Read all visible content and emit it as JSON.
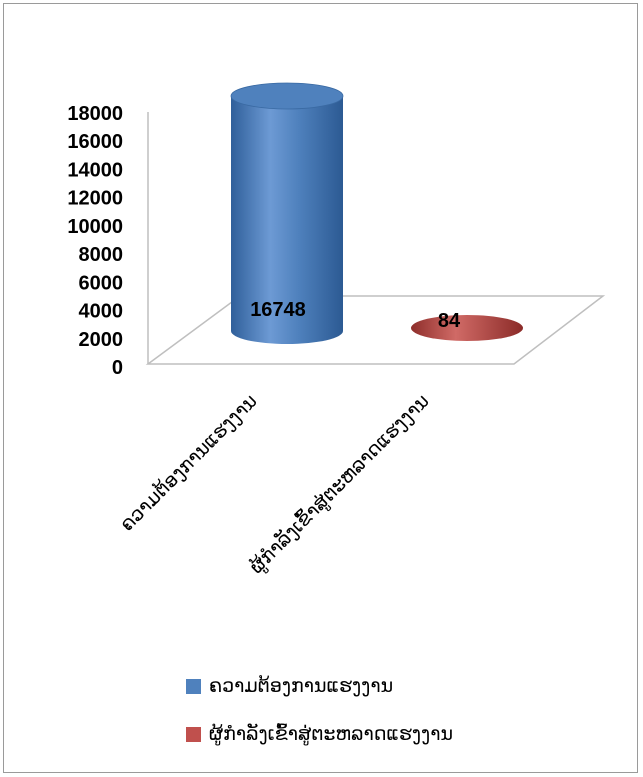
{
  "chart_data": {
    "type": "bar",
    "style": "3d-cylinder",
    "categories": [
      "ຄວາມຕ້ອງການແຮງງານ",
      "ຜູ້ກໍາລັງເຂົ້າສູ່ຕະຫລາດແຮງງານ"
    ],
    "values": [
      16748,
      84
    ],
    "data_labels": [
      "16748",
      "84"
    ],
    "colors": [
      "#4f81bd",
      "#c0504d"
    ],
    "ylim": [
      0,
      18000
    ],
    "yticks": [
      "0",
      "2000",
      "4000",
      "6000",
      "8000",
      "10000",
      "12000",
      "14000",
      "16000",
      "18000"
    ],
    "grid": false,
    "legend_position": "bottom"
  }
}
